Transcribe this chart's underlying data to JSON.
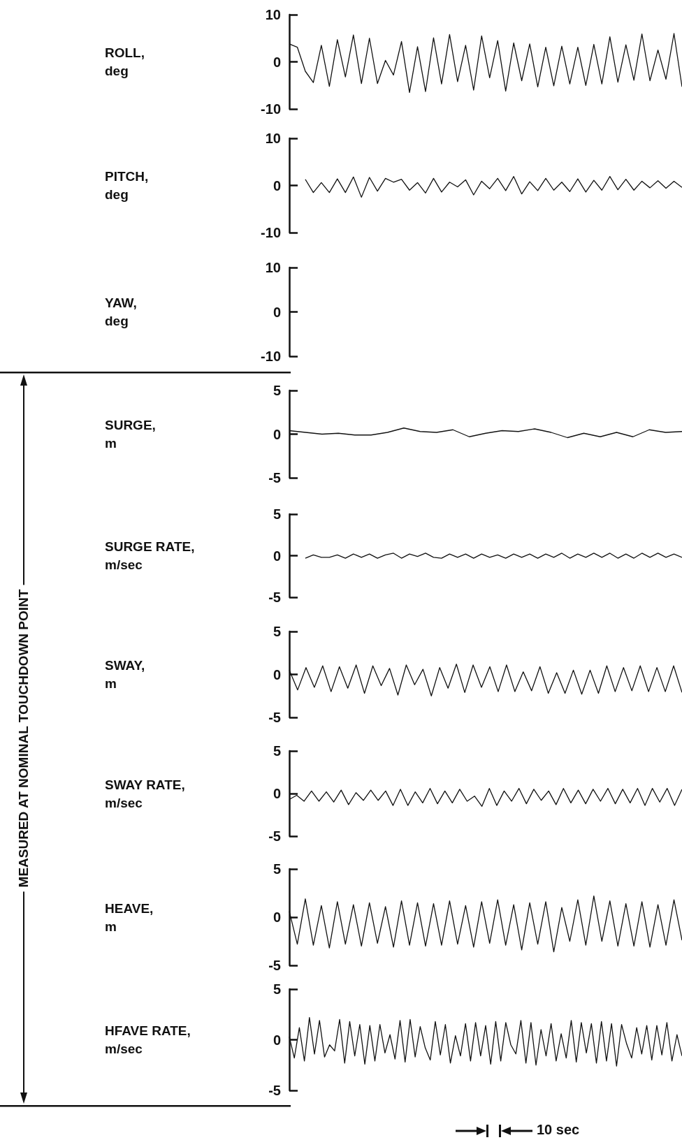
{
  "chart_data": [
    {
      "type": "line",
      "ylabel": "ROLL, deg",
      "ylim": [
        -10,
        10
      ],
      "yticks": [
        -10,
        0,
        10
      ],
      "tick_labels": "y",
      "categories": [
        null,
        null,
        null,
        null,
        null,
        null,
        null,
        null,
        null,
        null,
        null,
        null,
        null,
        null,
        null,
        null,
        null,
        null,
        null,
        null,
        null,
        null,
        null,
        null,
        null,
        null,
        null,
        null,
        null,
        null,
        null,
        null,
        null,
        null,
        null,
        null,
        null,
        null,
        null,
        null,
        null,
        null,
        null,
        null,
        null,
        null,
        null,
        null,
        null,
        null
      ],
      "series": [
        {
          "color": "#111111",
          "values": [
            3.8,
            3.1,
            -2,
            -4.4,
            3.5,
            -5.2,
            4.7,
            -3.2,
            5.7,
            -4.6,
            5,
            -4.6,
            0.3,
            -2.8,
            4.3,
            -6.5,
            3.2,
            -6.3,
            5.1,
            -4.7,
            5.8,
            -4.2,
            3.5,
            -6,
            5.5,
            -3.4,
            4.5,
            -6.2,
            4,
            -4,
            3.8,
            -5.3,
            3.1,
            -5.1,
            3.3,
            -4.7,
            3.1,
            -5,
            3.7,
            -4.7,
            5.3,
            -4.3,
            3.6,
            -3.9,
            5.9,
            -4,
            2.5,
            -3.7,
            6,
            -5.3
          ]
        }
      ]
    },
    {
      "type": "line",
      "ylabel": "PITCH, deg",
      "ylim": [
        -10,
        10
      ],
      "yticks": [
        -10,
        0,
        10
      ],
      "tick_labels": "y",
      "categories": [
        null,
        null,
        null,
        null,
        null,
        null,
        null,
        null,
        null,
        null,
        null,
        null,
        null,
        null,
        null,
        null,
        null,
        null,
        null,
        null,
        null,
        null,
        null,
        null,
        null,
        null,
        null,
        null,
        null,
        null,
        null,
        null,
        null,
        null,
        null,
        null,
        null,
        null,
        null,
        null,
        null,
        null,
        null,
        null,
        null,
        null,
        null,
        null,
        null,
        null
      ],
      "series": [
        {
          "color": "#111111",
          "values": [
            null,
            null,
            1.3,
            -1.5,
            0.6,
            -1.5,
            1.4,
            -1.5,
            1.8,
            -2.5,
            1.7,
            -1.2,
            1.5,
            0.7,
            1.3,
            -1,
            0.6,
            -1.6,
            1.5,
            -1.4,
            0.7,
            -0.3,
            1.2,
            -2,
            0.9,
            -0.7,
            1.5,
            -1.1,
            1.9,
            -1.8,
            0.8,
            -1.1,
            1.5,
            -1,
            0.7,
            -1.3,
            1.4,
            -1.4,
            1.1,
            -1,
            1.9,
            -0.9,
            1.3,
            -1,
            0.9,
            -0.5,
            1.0,
            -0.6,
            0.9,
            -0.4
          ]
        }
      ]
    },
    {
      "type": "other",
      "ylabel": "YAW, deg",
      "annotations": [
        "10",
        "0",
        "-10"
      ]
    },
    {
      "type": "line",
      "ylabel": "SURGE, m",
      "ylim": [
        -5,
        5
      ],
      "yticks": [
        -5,
        0,
        5
      ],
      "tick_labels": "y",
      "categories": [
        null,
        null,
        null,
        null,
        null,
        null,
        null,
        null,
        null,
        null,
        null,
        null,
        null,
        null,
        null,
        null,
        null,
        null,
        null,
        null,
        null,
        null,
        null,
        null,
        null
      ],
      "series": [
        {
          "color": "#111111",
          "values": [
            0.4,
            0.2,
            0,
            0.1,
            -0.1,
            -0.1,
            0.2,
            0.7,
            0.3,
            0.2,
            0.5,
            -0.3,
            0.1,
            0.4,
            0.3,
            0.6,
            0.2,
            -0.4,
            0.1,
            -0.3,
            0.2,
            -0.3,
            0.5,
            0.2,
            0.3
          ]
        }
      ]
    },
    {
      "type": "line",
      "ylabel": "SURGE RATE, m/sec",
      "ylim": [
        -5,
        5
      ],
      "yticks": [
        -5,
        0,
        5
      ],
      "tick_labels": "y",
      "categories": [
        null,
        null,
        null,
        null,
        null,
        null,
        null,
        null,
        null,
        null,
        null,
        null,
        null,
        null,
        null,
        null,
        null,
        null,
        null,
        null,
        null,
        null,
        null,
        null,
        null,
        null,
        null,
        null,
        null,
        null,
        null,
        null,
        null,
        null,
        null,
        null,
        null,
        null,
        null,
        null,
        null,
        null,
        null,
        null,
        null,
        null,
        null,
        null,
        null,
        null
      ],
      "series": [
        {
          "color": "#111111",
          "values": [
            null,
            null,
            -0.3,
            0.1,
            -0.2,
            -0.2,
            0.1,
            -0.3,
            0.2,
            -0.2,
            0.2,
            -0.3,
            0.1,
            0.3,
            -0.3,
            0.2,
            -0.1,
            0.3,
            -0.2,
            -0.3,
            0.2,
            -0.2,
            0.2,
            -0.3,
            0.2,
            -0.2,
            0.1,
            -0.3,
            0.2,
            -0.2,
            0.2,
            -0.3,
            0.2,
            -0.2,
            0.3,
            -0.3,
            0.2,
            -0.2,
            0.3,
            -0.2,
            0.3,
            -0.3,
            0.2,
            -0.3,
            0.3,
            -0.2,
            0.3,
            -0.2,
            0.2,
            -0.2
          ]
        }
      ]
    },
    {
      "type": "line",
      "ylabel": "SWAY, m",
      "ylim": [
        -5,
        5
      ],
      "yticks": [
        -5,
        0,
        5
      ],
      "tick_labels": "y",
      "categories": [
        null,
        null,
        null,
        null,
        null,
        null,
        null,
        null,
        null,
        null,
        null,
        null,
        null,
        null,
        null,
        null,
        null,
        null,
        null,
        null,
        null,
        null,
        null,
        null,
        null,
        null,
        null,
        null,
        null,
        null,
        null,
        null,
        null,
        null,
        null,
        null,
        null,
        null,
        null,
        null,
        null,
        null,
        null,
        null,
        null,
        null,
        null,
        null
      ],
      "series": [
        {
          "color": "#111111",
          "values": [
            0.5,
            -1.8,
            0.8,
            -1.5,
            1.0,
            -2.0,
            0.9,
            -1.6,
            1.1,
            -2.2,
            1.0,
            -1.3,
            0.7,
            -2.4,
            1.1,
            -1.2,
            0.6,
            -2.5,
            0.8,
            -1.6,
            1.2,
            -2.1,
            1.1,
            -1.5,
            0.9,
            -2.0,
            1.1,
            -2.0,
            0.3,
            -1.9,
            0.9,
            -2.2,
            0.2,
            -2.2,
            0.5,
            -2.3,
            0.5,
            -2.2,
            1.0,
            -2.0,
            0.8,
            -1.9,
            1.0,
            -2.0,
            0.8,
            -2.0,
            1.0,
            -2.1
          ]
        }
      ]
    },
    {
      "type": "line",
      "ylabel": "SWAY RATE, m/sec",
      "ylim": [
        -5,
        5
      ],
      "yticks": [
        -5,
        0,
        5
      ],
      "tick_labels": "y",
      "categories": [
        null,
        null,
        null,
        null,
        null,
        null,
        null,
        null,
        null,
        null,
        null,
        null,
        null,
        null,
        null,
        null,
        null,
        null,
        null,
        null,
        null,
        null,
        null,
        null,
        null,
        null,
        null,
        null,
        null,
        null,
        null,
        null,
        null,
        null,
        null,
        null,
        null,
        null,
        null,
        null,
        null,
        null,
        null,
        null,
        null,
        null,
        null,
        null,
        null,
        null,
        null,
        null,
        null,
        null
      ],
      "series": [
        {
          "color": "#111111",
          "values": [
            -0.7,
            -0.2,
            -0.9,
            0.3,
            -0.9,
            0.2,
            -1.0,
            0.4,
            -1.3,
            0.1,
            -0.8,
            0.4,
            -0.8,
            0.3,
            -1.4,
            0.5,
            -1.4,
            0.2,
            -1.1,
            0.6,
            -1.2,
            0.3,
            -1.1,
            0.5,
            -0.9,
            -0.3,
            -1.5,
            0.6,
            -1.4,
            0.3,
            -0.9,
            0.6,
            -1.2,
            0.5,
            -0.8,
            0.3,
            -1.3,
            0.6,
            -1.1,
            0.4,
            -1.2,
            0.5,
            -0.9,
            0.6,
            -1.2,
            0.5,
            -1.1,
            0.6,
            -1.4,
            0.6,
            -1.0,
            0.6,
            -1.4,
            0.5
          ]
        }
      ]
    },
    {
      "type": "line",
      "ylabel": "HEAVE, m",
      "ylim": [
        -5,
        5
      ],
      "yticks": [
        -5,
        0,
        5
      ],
      "tick_labels": "y",
      "categories": [
        null,
        null,
        null,
        null,
        null,
        null,
        null,
        null,
        null,
        null,
        null,
        null,
        null,
        null,
        null,
        null,
        null,
        null,
        null,
        null,
        null,
        null,
        null,
        null,
        null,
        null,
        null,
        null,
        null,
        null,
        null,
        null,
        null,
        null,
        null,
        null,
        null,
        null,
        null,
        null,
        null,
        null,
        null,
        null,
        null,
        null,
        null,
        null,
        null,
        null
      ],
      "series": [
        {
          "color": "#111111",
          "values": [
            0.6,
            -2.8,
            1.9,
            -2.9,
            1.2,
            -3.2,
            1.6,
            -2.8,
            1.3,
            -3.0,
            1.5,
            -2.7,
            1.1,
            -3.1,
            1.7,
            -2.9,
            1.5,
            -3.0,
            1.4,
            -2.9,
            1.7,
            -2.8,
            1.2,
            -3.1,
            1.6,
            -2.7,
            1.8,
            -2.9,
            1.3,
            -3.4,
            1.5,
            -2.8,
            1.6,
            -3.6,
            1.0,
            -2.5,
            1.8,
            -2.9,
            2.2,
            -2.5,
            1.7,
            -3.0,
            1.4,
            -3.0,
            1.6,
            -3.1,
            1.3,
            -2.9,
            1.8,
            -2.4
          ]
        }
      ]
    },
    {
      "type": "line",
      "ylabel": "HFAVE RATE, m/sec",
      "ylim": [
        -5,
        5
      ],
      "yticks": [
        -5,
        0,
        5
      ],
      "tick_labels": "y",
      "annotations": [
        "MEASURED AT NOMINAL TOUCHDOWN POINT",
        "10 sec"
      ],
      "categories": [
        null,
        null,
        null,
        null,
        null,
        null,
        null,
        null,
        null,
        null,
        null,
        null,
        null,
        null,
        null,
        null,
        null,
        null,
        null,
        null,
        null,
        null,
        null,
        null,
        null,
        null,
        null,
        null,
        null,
        null,
        null,
        null,
        null,
        null,
        null,
        null,
        null,
        null,
        null,
        null,
        null,
        null,
        null,
        null,
        null,
        null,
        null,
        null,
        null,
        null,
        null,
        null,
        null,
        null,
        null,
        null,
        null,
        null,
        null,
        null,
        null,
        null,
        null,
        null,
        null,
        null,
        null,
        null,
        null,
        null,
        null,
        null,
        null,
        null,
        null,
        null,
        null,
        null,
        null
      ],
      "series": [
        {
          "color": "#111111",
          "values": [
            0.3,
            -1.8,
            1.2,
            -2.1,
            2.2,
            -1.4,
            1.9,
            -1.7,
            -0.5,
            -1.1,
            2.0,
            -2.3,
            1.8,
            -1.6,
            1.5,
            -2.4,
            1.4,
            -2.1,
            1.5,
            -1.3,
            0.5,
            -1.9,
            1.9,
            -2.2,
            2.0,
            -1.7,
            1.3,
            -0.8,
            -2.0,
            1.8,
            -1.5,
            1.5,
            -2.3,
            0.4,
            -1.6,
            1.6,
            -2.1,
            1.7,
            -1.6,
            1.4,
            -2.4,
            1.8,
            -2.1,
            1.7,
            -0.5,
            -1.4,
            1.9,
            -2.3,
            1.7,
            -2.5,
            1.0,
            -1.6,
            1.6,
            -2.1,
            0.6,
            -1.8,
            1.9,
            -2.2,
            1.7,
            -1.3,
            1.6,
            -2.3,
            1.8,
            -2.1,
            1.6,
            -2.6,
            1.5,
            -0.4,
            -1.8,
            1.2,
            -1.4,
            1.4,
            -2.0,
            1.4,
            -1.5,
            1.7,
            -2.1,
            0.5,
            -1.6
          ]
        }
      ]
    }
  ]
}
